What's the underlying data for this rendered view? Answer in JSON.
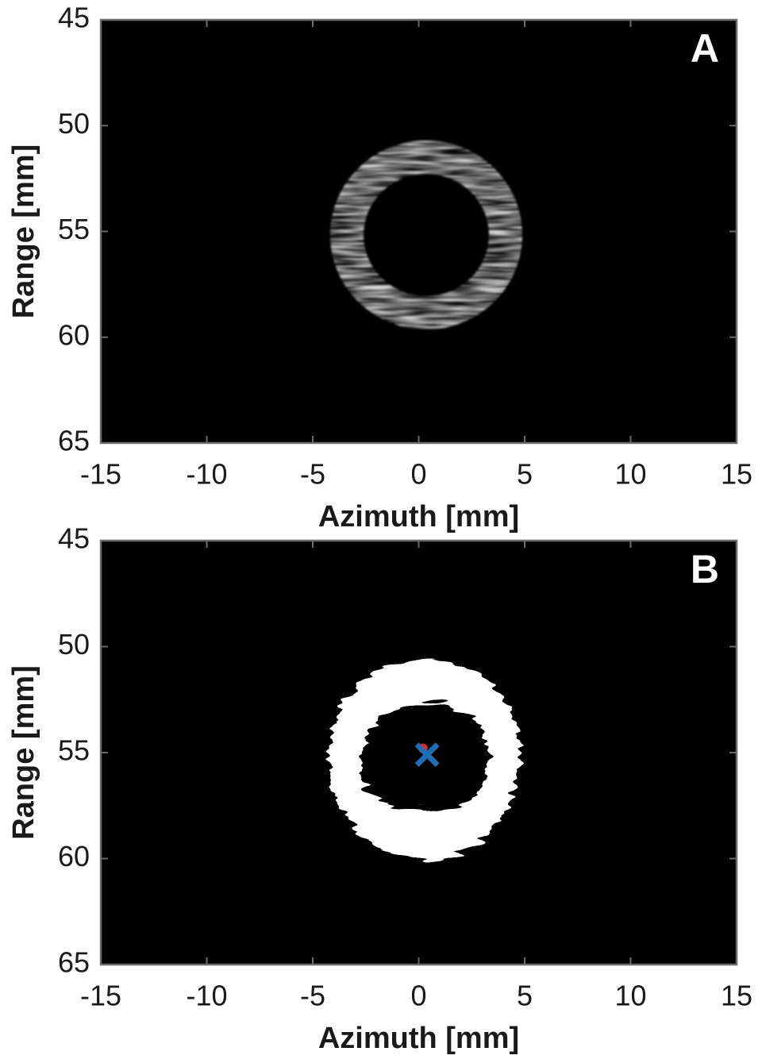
{
  "chart_data": [
    {
      "type": "image",
      "panel_label": "A",
      "xlabel": "Azimuth [mm]",
      "ylabel": "Range [mm]",
      "xlim": [
        -15,
        15
      ],
      "ylim": [
        45,
        65
      ],
      "y_reversed": true,
      "xticks": [
        -15,
        -10,
        -5,
        0,
        5,
        10,
        15
      ],
      "yticks": [
        45,
        50,
        55,
        60,
        65
      ]
    },
    {
      "type": "image",
      "panel_label": "B",
      "xlabel": "Azimuth [mm]",
      "ylabel": "Range [mm]",
      "xlim": [
        -15,
        15
      ],
      "ylim": [
        45,
        65
      ],
      "y_reversed": true,
      "xticks": [
        -15,
        -10,
        -5,
        0,
        5,
        10,
        15
      ],
      "yticks": [
        45,
        50,
        55,
        60,
        65
      ],
      "markers": [
        {
          "x": 0.2,
          "y": 54.8,
          "color": "#e8242b",
          "marker": "dot"
        },
        {
          "x": 0.4,
          "y": 55.1,
          "color": "#1f6db5",
          "marker": "x"
        }
      ]
    }
  ]
}
